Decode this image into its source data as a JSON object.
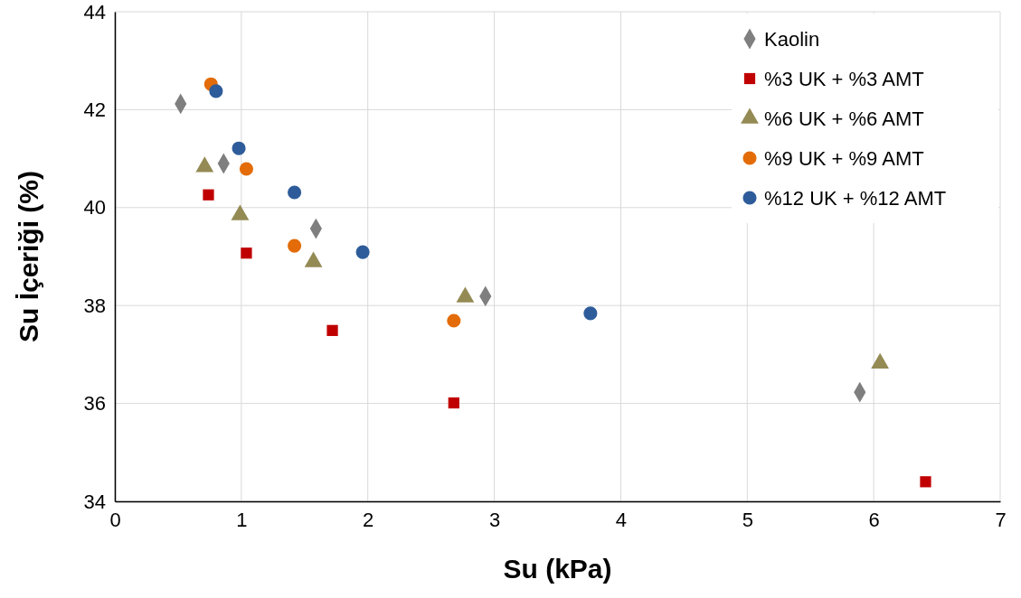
{
  "chart_data": {
    "type": "scatter",
    "xlabel": "Su (kPa)",
    "ylabel": "Su İçeriği (%)",
    "xlim": [
      0,
      7
    ],
    "xticks": [
      0,
      1,
      2,
      3,
      4,
      5,
      6,
      7
    ],
    "ylim": [
      34,
      44
    ],
    "yticks": [
      34,
      36,
      38,
      40,
      42,
      44
    ],
    "grid": true,
    "legend": "top right",
    "series": [
      {
        "name": "Kaolin",
        "color": "#7f7f7f",
        "marker": "diamond",
        "x": [
          0.52,
          0.86,
          1.59,
          2.93,
          5.89
        ],
        "values": [
          42.12,
          40.9,
          39.57,
          38.19,
          36.23
        ]
      },
      {
        "name": "%3 UK + %3 AMT",
        "color": "#c00000",
        "marker": "square",
        "x": [
          0.74,
          1.04,
          1.72,
          2.68,
          6.41
        ],
        "values": [
          40.26,
          39.07,
          37.49,
          36.01,
          34.4
        ]
      },
      {
        "name": "%6 UK + %6 AMT",
        "color": "#948a54",
        "marker": "triangle",
        "x": [
          0.71,
          0.99,
          1.57,
          2.77,
          6.05
        ],
        "values": [
          40.83,
          39.85,
          38.89,
          38.17,
          36.82
        ]
      },
      {
        "name": "%9 UK + %9 AMT",
        "color": "#e36c09",
        "marker": "circle",
        "x": [
          0.76,
          1.04,
          1.42,
          2.68
        ],
        "values": [
          42.52,
          40.79,
          39.22,
          37.69
        ]
      },
      {
        "name": "%12 UK + %12 AMT",
        "color": "#2e5c9a",
        "marker": "circle",
        "x": [
          0.8,
          0.98,
          1.42,
          1.96,
          3.76
        ],
        "values": [
          42.38,
          41.21,
          40.31,
          39.09,
          37.84
        ]
      }
    ]
  }
}
